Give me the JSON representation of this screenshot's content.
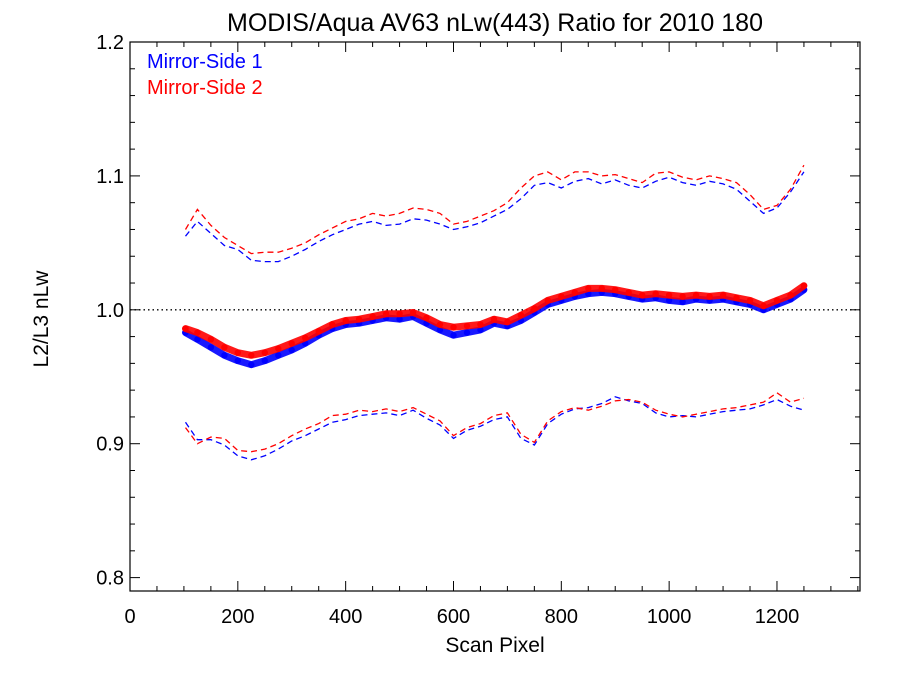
{
  "chart_data": {
    "type": "line",
    "title": "MODIS/Aqua AV63 nLw(443) Ratio for 2010 180",
    "xlabel": "Scan Pixel",
    "ylabel": "L2/L3 nLw",
    "xlim": [
      0,
      1354
    ],
    "ylim": [
      0.79,
      1.2
    ],
    "xticks": [
      {
        "value": 0,
        "label": "0"
      },
      {
        "value": 200,
        "label": "200"
      },
      {
        "value": 400,
        "label": "400"
      },
      {
        "value": 600,
        "label": "600"
      },
      {
        "value": 800,
        "label": "800"
      },
      {
        "value": 1000,
        "label": "1000"
      },
      {
        "value": 1200,
        "label": "1200"
      }
    ],
    "yticks": [
      {
        "value": 0.8,
        "label": "0.8"
      },
      {
        "value": 0.9,
        "label": "0.9"
      },
      {
        "value": 1.0,
        "label": "1.0"
      },
      {
        "value": 1.1,
        "label": "1.1"
      },
      {
        "value": 1.2,
        "label": "1.2"
      }
    ],
    "reference_line": {
      "y": 1.0,
      "style": "dotted",
      "color": "#000000"
    },
    "legend_position": "top-left",
    "grid": false,
    "x": [
      103,
      125,
      150,
      175,
      200,
      225,
      250,
      275,
      300,
      325,
      350,
      375,
      400,
      425,
      450,
      475,
      500,
      525,
      550,
      575,
      600,
      625,
      650,
      675,
      700,
      725,
      750,
      775,
      800,
      825,
      850,
      875,
      900,
      925,
      950,
      975,
      1000,
      1025,
      1050,
      1075,
      1100,
      1125,
      1150,
      1175,
      1200,
      1225,
      1250
    ],
    "series": [
      {
        "name": "Mirror-Side 1",
        "color": "#0000ff",
        "mean": [
          0.983,
          0.978,
          0.972,
          0.966,
          0.962,
          0.959,
          0.962,
          0.966,
          0.97,
          0.975,
          0.981,
          0.986,
          0.989,
          0.99,
          0.992,
          0.994,
          0.993,
          0.995,
          0.99,
          0.985,
          0.981,
          0.983,
          0.985,
          0.99,
          0.988,
          0.992,
          0.998,
          1.004,
          1.007,
          1.01,
          1.012,
          1.013,
          1.012,
          1.01,
          1.008,
          1.009,
          1.007,
          1.006,
          1.008,
          1.007,
          1.008,
          1.006,
          1.004,
          1.0,
          1.004,
          1.008,
          1.015
        ],
        "upper": [
          1.055,
          1.066,
          1.057,
          1.048,
          1.045,
          1.037,
          1.036,
          1.036,
          1.04,
          1.045,
          1.051,
          1.056,
          1.06,
          1.064,
          1.066,
          1.063,
          1.064,
          1.068,
          1.067,
          1.064,
          1.06,
          1.062,
          1.065,
          1.07,
          1.075,
          1.083,
          1.093,
          1.095,
          1.091,
          1.096,
          1.098,
          1.094,
          1.097,
          1.093,
          1.091,
          1.096,
          1.099,
          1.095,
          1.093,
          1.096,
          1.094,
          1.09,
          1.081,
          1.072,
          1.076,
          1.088,
          1.103
        ],
        "lower": [
          0.916,
          0.903,
          0.903,
          0.899,
          0.891,
          0.888,
          0.891,
          0.896,
          0.902,
          0.906,
          0.911,
          0.916,
          0.918,
          0.921,
          0.922,
          0.923,
          0.921,
          0.925,
          0.919,
          0.914,
          0.904,
          0.91,
          0.913,
          0.918,
          0.92,
          0.904,
          0.899,
          0.915,
          0.922,
          0.926,
          0.927,
          0.93,
          0.935,
          0.932,
          0.93,
          0.923,
          0.92,
          0.921,
          0.92,
          0.922,
          0.924,
          0.925,
          0.926,
          0.929,
          0.933,
          0.928,
          0.925
        ]
      },
      {
        "name": "Mirror-Side 2",
        "color": "#ff0000",
        "mean": [
          0.986,
          0.983,
          0.978,
          0.972,
          0.968,
          0.966,
          0.968,
          0.971,
          0.975,
          0.979,
          0.984,
          0.989,
          0.992,
          0.993,
          0.995,
          0.997,
          0.997,
          0.998,
          0.994,
          0.989,
          0.987,
          0.988,
          0.989,
          0.993,
          0.991,
          0.996,
          1.001,
          1.007,
          1.01,
          1.013,
          1.016,
          1.016,
          1.015,
          1.013,
          1.011,
          1.012,
          1.011,
          1.01,
          1.011,
          1.01,
          1.011,
          1.009,
          1.007,
          1.003,
          1.007,
          1.011,
          1.018
        ],
        "upper": [
          1.06,
          1.075,
          1.063,
          1.054,
          1.048,
          1.042,
          1.043,
          1.043,
          1.046,
          1.05,
          1.056,
          1.061,
          1.066,
          1.068,
          1.072,
          1.07,
          1.072,
          1.076,
          1.075,
          1.072,
          1.064,
          1.066,
          1.07,
          1.074,
          1.08,
          1.091,
          1.1,
          1.103,
          1.097,
          1.103,
          1.103,
          1.1,
          1.101,
          1.098,
          1.095,
          1.102,
          1.103,
          1.099,
          1.097,
          1.1,
          1.098,
          1.095,
          1.086,
          1.075,
          1.078,
          1.09,
          1.108
        ],
        "lower": [
          0.912,
          0.9,
          0.905,
          0.904,
          0.895,
          0.894,
          0.896,
          0.9,
          0.906,
          0.911,
          0.915,
          0.921,
          0.922,
          0.925,
          0.924,
          0.926,
          0.924,
          0.927,
          0.922,
          0.917,
          0.906,
          0.912,
          0.915,
          0.921,
          0.923,
          0.907,
          0.901,
          0.917,
          0.924,
          0.927,
          0.925,
          0.928,
          0.932,
          0.933,
          0.931,
          0.925,
          0.922,
          0.92,
          0.922,
          0.924,
          0.926,
          0.927,
          0.929,
          0.931,
          0.938,
          0.931,
          0.934
        ]
      }
    ]
  }
}
